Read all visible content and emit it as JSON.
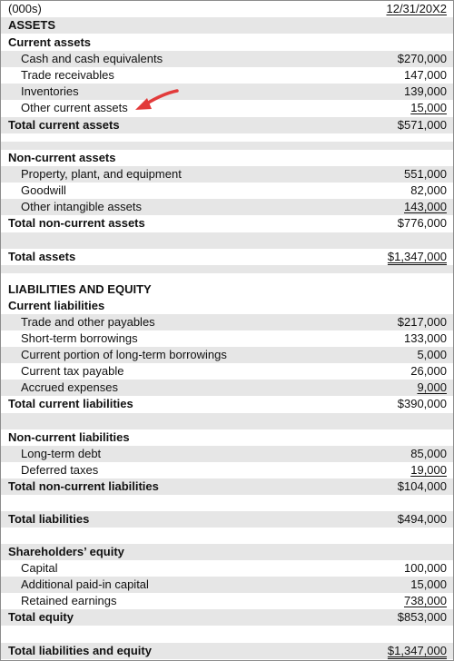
{
  "header": {
    "units": "(000s)",
    "date": "12/31/20X2"
  },
  "assets": {
    "heading": "ASSETS",
    "current": {
      "heading": "Current assets",
      "items": [
        {
          "label": "Cash and cash equivalents",
          "value": "$270,000"
        },
        {
          "label": "Trade receivables",
          "value": "147,000"
        },
        {
          "label": "Inventories",
          "value": "139,000"
        },
        {
          "label": "Other current assets",
          "value": "15,000"
        }
      ],
      "total_label": "Total current assets",
      "total_value": "$571,000"
    },
    "noncurrent": {
      "heading": "Non-current assets",
      "items": [
        {
          "label": "Property, plant, and equipment",
          "value": "551,000"
        },
        {
          "label": "Goodwill",
          "value": "82,000"
        },
        {
          "label": "Other intangible assets",
          "value": "143,000"
        }
      ],
      "total_label": "Total non-current assets",
      "total_value": "$776,000"
    },
    "total_label": "Total assets",
    "total_value": "$1,347,000"
  },
  "liabilities_equity": {
    "heading": "LIABILITIES AND EQUITY",
    "current": {
      "heading": "Current liabilities",
      "items": [
        {
          "label": "Trade and other payables",
          "value": "$217,000"
        },
        {
          "label": "Short-term borrowings",
          "value": "133,000"
        },
        {
          "label": "Current portion of long-term borrowings",
          "value": "5,000"
        },
        {
          "label": "Current tax payable",
          "value": "26,000"
        },
        {
          "label": "Accrued expenses",
          "value": "9,000"
        }
      ],
      "total_label": "Total current liabilities",
      "total_value": "$390,000"
    },
    "noncurrent": {
      "heading": "Non-current liabilities",
      "items": [
        {
          "label": "Long-term debt",
          "value": "85,000"
        },
        {
          "label": "Deferred taxes",
          "value": "19,000"
        }
      ],
      "total_label": "Total non-current liabilities",
      "total_value": "$104,000"
    },
    "total_liabilities_label": "Total liabilities",
    "total_liabilities_value": "$494,000",
    "equity": {
      "heading": "Shareholders’ equity",
      "items": [
        {
          "label": "Capital",
          "value": "100,000"
        },
        {
          "label": "Additional paid-in capital",
          "value": "15,000"
        },
        {
          "label": "Retained earnings",
          "value": "738,000"
        }
      ],
      "total_label": "Total equity",
      "total_value": "$853,000"
    },
    "total_label": "Total liabilities and equity",
    "total_value": "$1,347,000"
  },
  "annotation": {
    "arrow_icon": "red-arrow-icon",
    "arrow_color": "#e23b3b"
  },
  "colors": {
    "shade": "#e6e6e6",
    "border": "#8c8c8c",
    "text": "#111111"
  }
}
